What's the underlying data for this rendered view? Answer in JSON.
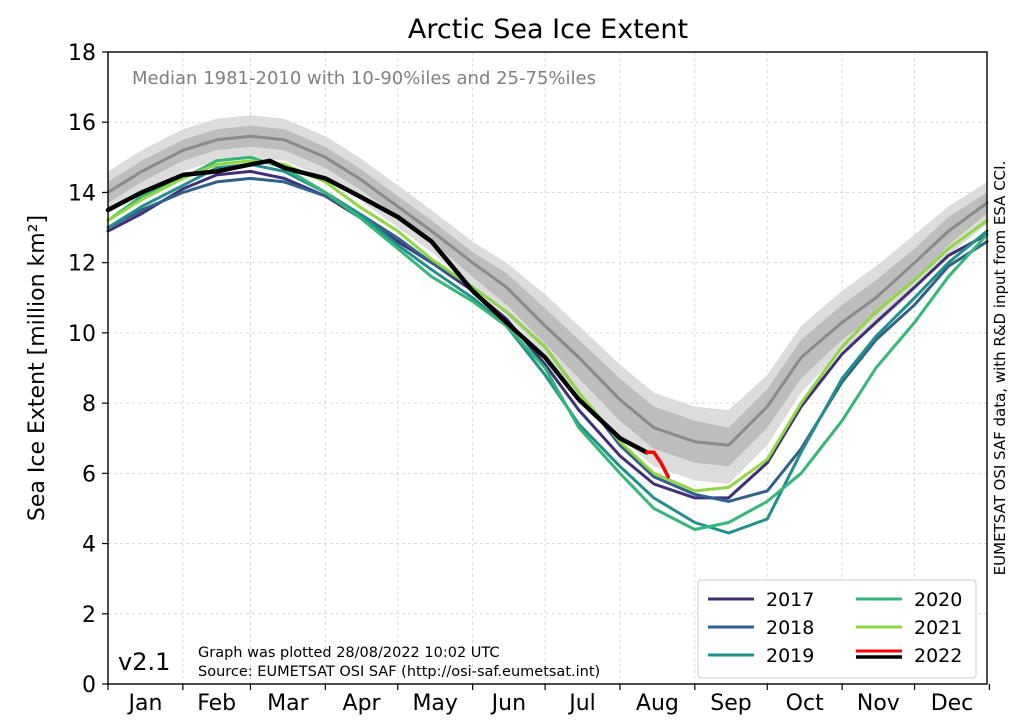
{
  "chart_data": {
    "type": "line",
    "title": "Arctic Sea Ice Extent",
    "ylabel": "Sea Ice Extent [million km²]",
    "xlabel": "",
    "ylim": [
      0,
      18
    ],
    "y_ticks": [
      0,
      2,
      4,
      6,
      8,
      10,
      12,
      14,
      16,
      18
    ],
    "x_range_days": [
      1,
      365
    ],
    "months": [
      "Jan",
      "Feb",
      "Mar",
      "Apr",
      "May",
      "Jun",
      "Jul",
      "Aug",
      "Sep",
      "Oct",
      "Nov",
      "Dec"
    ],
    "grid": true,
    "median_annotation": "Median 1981-2010 with 10-90%iles and 25-75%iles",
    "band_colors": {
      "p10_90": "#dcdcdc",
      "p25_75": "#bdbdbd",
      "median": "#8a8a8a"
    },
    "median": {
      "x": [
        1,
        15,
        32,
        46,
        60,
        74,
        91,
        105,
        121,
        135,
        152,
        166,
        182,
        196,
        213,
        227,
        244,
        258,
        274,
        288,
        305,
        319,
        335,
        349,
        365
      ],
      "values": [
        14.0,
        14.6,
        15.2,
        15.5,
        15.6,
        15.5,
        15.0,
        14.4,
        13.6,
        12.9,
        12.0,
        11.3,
        10.2,
        9.3,
        8.1,
        7.3,
        6.9,
        6.8,
        7.9,
        9.3,
        10.3,
        11.0,
        12.0,
        12.9,
        13.7
      ]
    },
    "band_25_75": {
      "x": [
        1,
        15,
        32,
        46,
        60,
        74,
        91,
        105,
        121,
        135,
        152,
        166,
        182,
        196,
        213,
        227,
        244,
        258,
        274,
        288,
        305,
        319,
        335,
        349,
        365
      ],
      "lower": [
        13.7,
        14.3,
        14.9,
        15.2,
        15.3,
        15.2,
        14.7,
        14.1,
        13.3,
        12.6,
        11.6,
        10.8,
        9.7,
        8.7,
        7.5,
        6.7,
        6.3,
        6.2,
        7.3,
        8.7,
        9.8,
        10.5,
        11.5,
        12.5,
        13.4
      ],
      "upper": [
        14.3,
        14.9,
        15.5,
        15.8,
        15.9,
        15.8,
        15.3,
        14.7,
        13.9,
        13.2,
        12.3,
        11.7,
        10.7,
        9.8,
        8.7,
        7.9,
        7.5,
        7.3,
        8.4,
        9.8,
        10.8,
        11.5,
        12.4,
        13.3,
        14.0
      ]
    },
    "band_10_90": {
      "x": [
        1,
        15,
        32,
        46,
        60,
        74,
        91,
        105,
        121,
        135,
        152,
        166,
        182,
        196,
        213,
        227,
        244,
        258,
        274,
        288,
        305,
        319,
        335,
        349,
        365
      ],
      "lower": [
        13.4,
        14.0,
        14.6,
        14.9,
        15.0,
        14.9,
        14.4,
        13.8,
        13.0,
        12.3,
        11.3,
        10.5,
        9.3,
        8.3,
        7.0,
        6.2,
        5.8,
        5.7,
        6.8,
        8.3,
        9.5,
        10.2,
        11.2,
        12.2,
        13.1
      ],
      "upper": [
        14.6,
        15.2,
        15.8,
        16.1,
        16.2,
        16.1,
        15.6,
        15.0,
        14.2,
        13.5,
        12.6,
        12.0,
        11.1,
        10.2,
        9.1,
        8.3,
        7.9,
        7.8,
        8.8,
        10.2,
        11.2,
        11.9,
        12.8,
        13.6,
        14.3
      ]
    },
    "series": [
      {
        "name": "2017",
        "color": "#3f3079",
        "x": [
          1,
          15,
          32,
          46,
          60,
          74,
          91,
          105,
          121,
          135,
          152,
          166,
          182,
          196,
          213,
          227,
          244,
          258,
          274,
          288,
          305,
          319,
          335,
          349,
          365
        ],
        "values": [
          12.9,
          13.4,
          14.1,
          14.5,
          14.6,
          14.4,
          13.9,
          13.3,
          12.6,
          12.0,
          11.2,
          10.4,
          9.1,
          7.8,
          6.5,
          5.7,
          5.3,
          5.3,
          6.3,
          7.9,
          9.4,
          10.3,
          11.3,
          12.2,
          12.8
        ]
      },
      {
        "name": "2018",
        "color": "#32608c",
        "x": [
          1,
          15,
          32,
          46,
          60,
          74,
          91,
          105,
          121,
          135,
          152,
          166,
          182,
          196,
          213,
          227,
          244,
          258,
          274,
          288,
          305,
          319,
          335,
          349,
          365
        ],
        "values": [
          13.0,
          13.5,
          14.0,
          14.3,
          14.4,
          14.3,
          13.9,
          13.4,
          12.7,
          12.0,
          11.3,
          10.6,
          9.6,
          8.3,
          6.8,
          5.9,
          5.4,
          5.2,
          5.5,
          6.7,
          8.6,
          9.8,
          10.8,
          11.9,
          12.6
        ]
      },
      {
        "name": "2019",
        "color": "#21908d",
        "x": [
          1,
          15,
          32,
          46,
          60,
          74,
          91,
          105,
          121,
          135,
          152,
          166,
          182,
          196,
          213,
          227,
          244,
          258,
          274,
          288,
          305,
          319,
          335,
          349,
          365
        ],
        "values": [
          13.0,
          13.6,
          14.2,
          14.7,
          14.8,
          14.6,
          14.0,
          13.4,
          12.5,
          11.8,
          11.0,
          10.2,
          8.8,
          7.4,
          6.2,
          5.3,
          4.6,
          4.3,
          4.7,
          6.6,
          8.7,
          9.9,
          11.0,
          12.0,
          12.9
        ]
      },
      {
        "name": "2020",
        "color": "#35b779",
        "x": [
          1,
          15,
          32,
          46,
          60,
          74,
          91,
          105,
          121,
          135,
          152,
          166,
          182,
          196,
          213,
          227,
          244,
          258,
          274,
          288,
          305,
          319,
          335,
          349,
          365
        ],
        "values": [
          13.2,
          13.9,
          14.4,
          14.9,
          15.0,
          14.7,
          14.0,
          13.3,
          12.4,
          11.6,
          10.9,
          10.2,
          9.0,
          7.3,
          6.0,
          5.0,
          4.4,
          4.6,
          5.2,
          6.0,
          7.5,
          9.0,
          10.3,
          11.6,
          12.8
        ]
      },
      {
        "name": "2021",
        "color": "#90d743",
        "x": [
          1,
          15,
          32,
          46,
          60,
          74,
          91,
          105,
          121,
          135,
          152,
          166,
          182,
          196,
          213,
          227,
          244,
          258,
          274,
          288,
          305,
          319,
          335,
          349,
          365
        ],
        "values": [
          13.2,
          13.8,
          14.4,
          14.8,
          14.9,
          14.8,
          14.3,
          13.6,
          12.9,
          12.1,
          11.3,
          10.6,
          9.6,
          8.3,
          6.9,
          6.0,
          5.5,
          5.6,
          6.4,
          8.0,
          9.6,
          10.6,
          11.5,
          12.4,
          13.2
        ]
      },
      {
        "name": "2022",
        "color": "#000000",
        "x": [
          1,
          15,
          32,
          46,
          60,
          68,
          74,
          91,
          105,
          121,
          135,
          152,
          166,
          182,
          196,
          213,
          224
        ],
        "values": [
          13.5,
          14.0,
          14.5,
          14.6,
          14.8,
          14.9,
          14.7,
          14.4,
          13.9,
          13.3,
          12.6,
          11.2,
          10.3,
          9.3,
          8.1,
          7.0,
          6.6
        ]
      },
      {
        "name": "2022 (recent)",
        "color": "#ff0000",
        "x": [
          224,
          227,
          230,
          233
        ],
        "values": [
          6.6,
          6.6,
          6.3,
          5.9
        ]
      }
    ],
    "legend": {
      "placement": "lower-right",
      "entries": [
        {
          "label": "2017",
          "color": "#3f3079"
        },
        {
          "label": "2020",
          "color": "#35b779"
        },
        {
          "label": "2018",
          "color": "#32608c"
        },
        {
          "label": "2021",
          "color": "#90d743"
        },
        {
          "label": "2019",
          "color": "#21908d"
        },
        {
          "label": "2022",
          "color": "#ff0000",
          "color2": "#000000"
        }
      ]
    },
    "footer_lines": [
      "Graph was plotted 28/08/2022 10:02 UTC",
      "Source: EUMETSAT OSI SAF (http://osi-saf.eumetsat.int)"
    ],
    "version": "v2.1",
    "credit": "EUMETSAT OSI SAF data, with R&D input from ESA CCI."
  }
}
